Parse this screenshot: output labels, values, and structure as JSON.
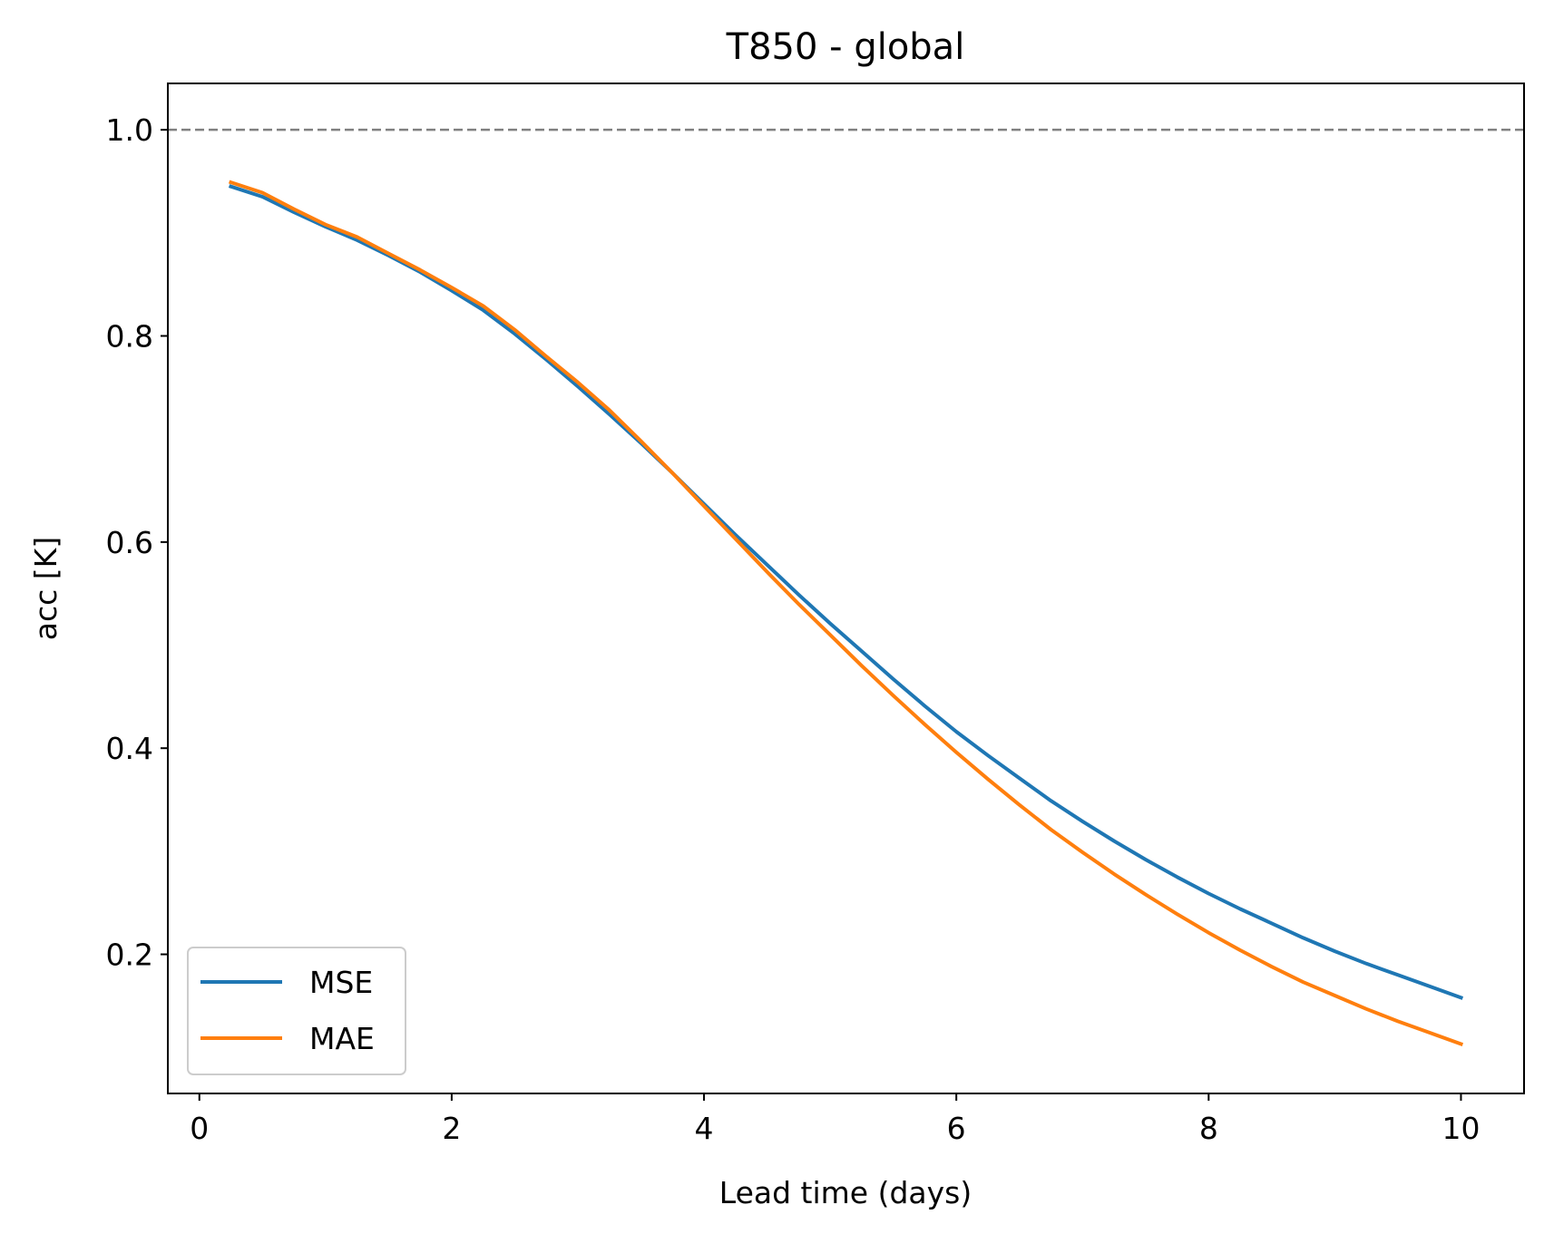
{
  "chart_data": {
    "type": "line",
    "title": "T850 - global",
    "xlabel": "Lead time (days)",
    "ylabel": "acc [K]",
    "xlim": [
      -0.25,
      10.5
    ],
    "ylim": [
      0.065,
      1.045
    ],
    "xticks": [
      0,
      2,
      4,
      6,
      8,
      10
    ],
    "xtick_labels": [
      "0",
      "2",
      "4",
      "6",
      "8",
      "10"
    ],
    "yticks": [
      0.2,
      0.4,
      0.6,
      0.8,
      1.0
    ],
    "ytick_labels": [
      "0.2",
      "0.4",
      "0.6",
      "0.8",
      "1.0"
    ],
    "grid": false,
    "legend_position": "lower-left",
    "reference_line": {
      "y": 1.0,
      "color": "#808080",
      "style": "dashed"
    },
    "x": [
      0.25,
      0.5,
      0.75,
      1.0,
      1.25,
      1.5,
      1.75,
      2.0,
      2.25,
      2.5,
      2.75,
      3.0,
      3.25,
      3.5,
      3.75,
      4.0,
      4.25,
      4.5,
      4.75,
      5.0,
      5.25,
      5.5,
      5.75,
      6.0,
      6.25,
      6.5,
      6.75,
      7.0,
      7.25,
      7.5,
      7.75,
      8.0,
      8.25,
      8.5,
      8.75,
      9.0,
      9.25,
      9.5,
      9.75,
      10.0
    ],
    "series": [
      {
        "name": "MSE",
        "color": "#1f77b4",
        "values": [
          0.945,
          0.935,
          0.92,
          0.906,
          0.893,
          0.878,
          0.862,
          0.844,
          0.825,
          0.802,
          0.777,
          0.751,
          0.724,
          0.696,
          0.667,
          0.637,
          0.607,
          0.578,
          0.549,
          0.521,
          0.494,
          0.467,
          0.441,
          0.416,
          0.393,
          0.371,
          0.349,
          0.329,
          0.31,
          0.292,
          0.275,
          0.259,
          0.244,
          0.23,
          0.216,
          0.203,
          0.191,
          0.18,
          0.169,
          0.158
        ]
      },
      {
        "name": "MAE",
        "color": "#ff7f0e",
        "values": [
          0.949,
          0.939,
          0.923,
          0.908,
          0.896,
          0.88,
          0.864,
          0.847,
          0.829,
          0.806,
          0.78,
          0.755,
          0.728,
          0.698,
          0.667,
          0.635,
          0.603,
          0.571,
          0.54,
          0.51,
          0.48,
          0.451,
          0.423,
          0.396,
          0.37,
          0.345,
          0.321,
          0.299,
          0.278,
          0.258,
          0.239,
          0.221,
          0.204,
          0.188,
          0.173,
          0.16,
          0.147,
          0.135,
          0.124,
          0.113
        ]
      }
    ]
  }
}
